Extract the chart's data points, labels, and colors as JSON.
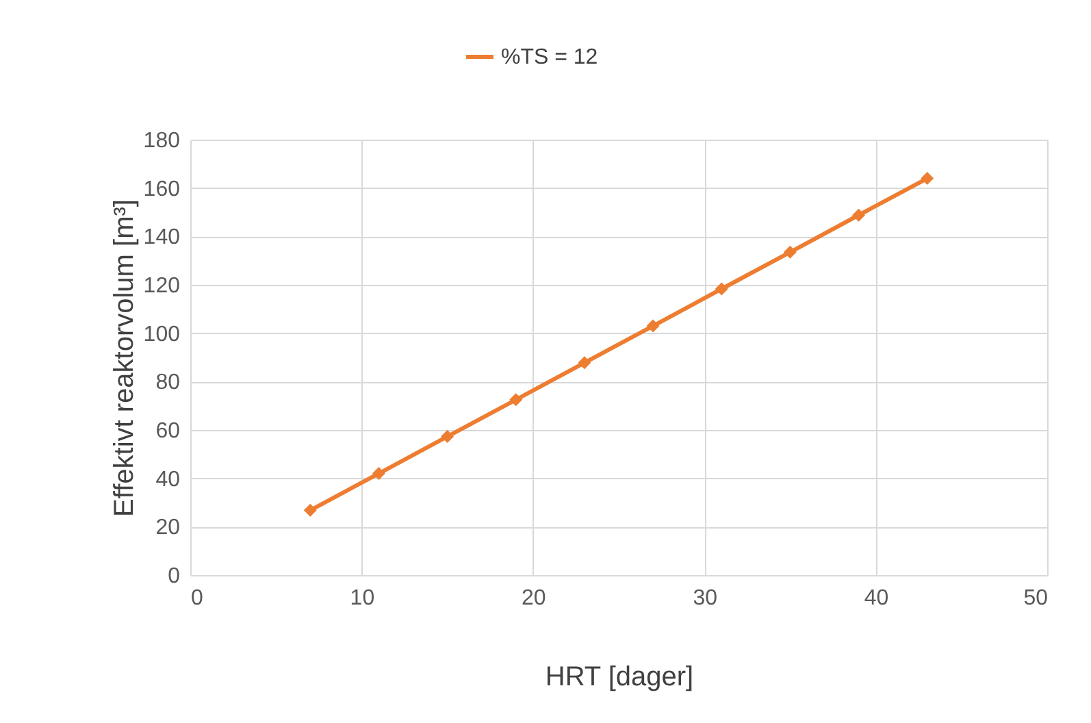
{
  "chart_data": {
    "type": "line",
    "xlabel": "HRT [dager]",
    "ylabel": "Effektivt reaktorvolum [m³]",
    "x": [
      7,
      11,
      15,
      19,
      23,
      27,
      31,
      35,
      39,
      43
    ],
    "series": [
      {
        "name": "%TS = 12",
        "color": "#ed7d31",
        "values": [
          26.8,
          42,
          57.3,
          72.5,
          87.8,
          103,
          118.3,
          133.5,
          148.8,
          164
        ]
      }
    ],
    "xlim": [
      0,
      50
    ],
    "xticks": [
      0,
      10,
      20,
      30,
      40,
      50
    ],
    "ylim": [
      0,
      180
    ],
    "yticks": [
      0,
      20,
      40,
      60,
      80,
      100,
      120,
      140,
      160,
      180
    ],
    "grid": true,
    "legend": "top",
    "marker": "diamond",
    "line_style": "solid"
  }
}
